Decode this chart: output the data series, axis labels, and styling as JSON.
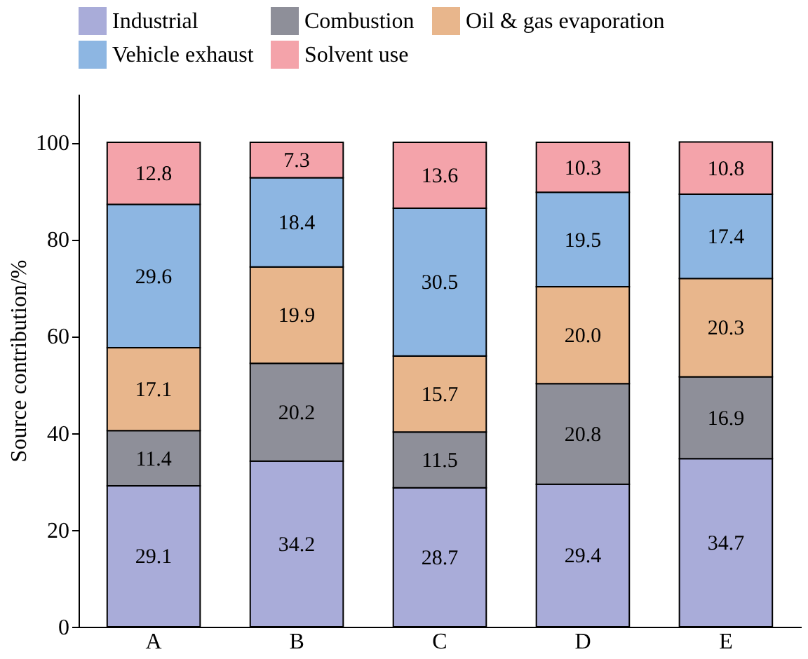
{
  "chart_data": {
    "type": "bar",
    "stacked": true,
    "ylabel": "Source contribution/%",
    "categories": [
      "A",
      "B",
      "C",
      "D",
      "E"
    ],
    "series": [
      {
        "name": "Industrial",
        "color": "#a9acd9",
        "values": [
          29.1,
          34.2,
          28.7,
          29.4,
          34.7
        ],
        "value_labels": [
          "29.1",
          "34.2",
          "28.7",
          "29.4",
          "34.7"
        ]
      },
      {
        "name": "Combustion",
        "color": "#8e8f99",
        "values": [
          11.4,
          20.2,
          11.5,
          20.8,
          16.9
        ],
        "value_labels": [
          "11.4",
          "20.2",
          "11.5",
          "20.8",
          "16.9"
        ]
      },
      {
        "name": "Oil & gas evaporation",
        "color": "#e8b68c",
        "values": [
          17.1,
          19.9,
          15.7,
          20.0,
          20.3
        ],
        "value_labels": [
          "17.1",
          "19.9",
          "15.7",
          "20.0",
          "20.3"
        ]
      },
      {
        "name": "Vehicle exhaust",
        "color": "#8db6e2",
        "values": [
          29.6,
          18.4,
          30.5,
          19.5,
          17.4
        ],
        "value_labels": [
          "29.6",
          "18.4",
          "30.5",
          "19.5",
          "17.4"
        ]
      },
      {
        "name": "Solvent use",
        "color": "#f4a3aa",
        "values": [
          12.8,
          7.3,
          13.6,
          10.3,
          10.8
        ],
        "value_labels": [
          "12.8",
          "7.3",
          "13.6",
          "10.3",
          "10.8"
        ]
      }
    ],
    "ylim": [
      0,
      110
    ],
    "yticks": [
      0,
      20,
      40,
      60,
      80,
      100
    ],
    "grid": false,
    "legend": "top"
  }
}
